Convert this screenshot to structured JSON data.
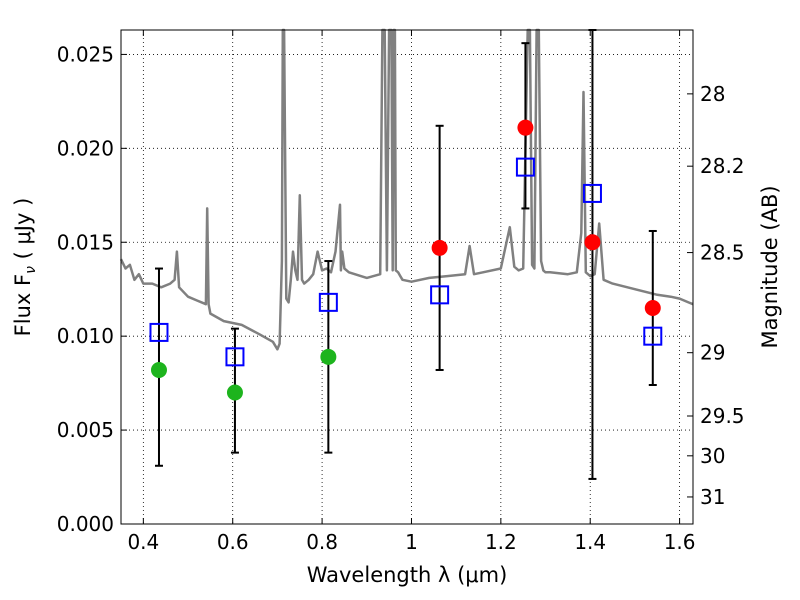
{
  "chart_data": {
    "type": "scatter",
    "xlabel": "Wavelength  λ (μm)",
    "ylabel_text": "Flux  F",
    "ylabel_sub": "ν",
    "ylabel_unit": "  ( μJy )",
    "y2label": "Magnitude (AB)",
    "xlim": [
      0.35,
      1.63
    ],
    "ylim": [
      0.0,
      0.0263
    ],
    "xticks": [
      0.4,
      0.6,
      0.8,
      1.0,
      1.2,
      1.4,
      1.6
    ],
    "xtick_labels": [
      "0.4",
      "0.6",
      "0.8",
      "1",
      "1.2",
      "1.4",
      "1.6"
    ],
    "yticks": [
      0.0,
      0.005,
      0.01,
      0.015,
      0.02,
      0.025
    ],
    "ytick_labels": [
      "0.000",
      "0.005",
      "0.010",
      "0.015",
      "0.020",
      "0.025"
    ],
    "y2ticks": [
      {
        "label": "28",
        "flux": 0.0229
      },
      {
        "label": "28.2",
        "flux": 0.01905
      },
      {
        "label": "28.5",
        "flux": 0.01445
      },
      {
        "label": "29",
        "flux": 0.00912
      },
      {
        "label": "29.5",
        "flux": 0.00575
      },
      {
        "label": "30",
        "flux": 0.00363
      },
      {
        "label": "31",
        "flux": 0.00144
      }
    ],
    "grid": true,
    "colors": {
      "model": "#808080",
      "green": "#1db41d",
      "red": "#ff0000",
      "square": "#0000ff",
      "errorbar": "#000000"
    },
    "series": [
      {
        "marker": "square",
        "x": [
          0.435,
          0.605,
          0.814,
          1.063,
          1.255,
          1.405,
          1.54
        ],
        "y": [
          0.0102,
          0.0089,
          0.0118,
          0.0122,
          0.019,
          0.0176,
          0.01
        ],
        "yerr_low": [
          0.0031,
          0.0038,
          0.0038,
          0.0082,
          0.0168,
          0.0024,
          0.0074
        ],
        "yerr_high": [
          0.0136,
          0.0104,
          0.014,
          0.0212,
          0.0256,
          0.0263,
          0.0156
        ]
      },
      {
        "marker": "circle-green",
        "x": [
          0.435,
          0.605,
          0.814
        ],
        "y": [
          0.0082,
          0.007,
          0.0089
        ]
      },
      {
        "marker": "circle-red",
        "x": [
          1.063,
          1.255,
          1.405,
          1.54
        ],
        "y": [
          0.0147,
          0.0211,
          0.015,
          0.0115
        ]
      }
    ],
    "model_spectrum": {
      "x": [
        0.35,
        0.36,
        0.37,
        0.38,
        0.39,
        0.4,
        0.42,
        0.44,
        0.46,
        0.47,
        0.475,
        0.48,
        0.5,
        0.52,
        0.54,
        0.543,
        0.546,
        0.55,
        0.58,
        0.62,
        0.66,
        0.69,
        0.7,
        0.705,
        0.71,
        0.712,
        0.715,
        0.72,
        0.725,
        0.73,
        0.735,
        0.74,
        0.745,
        0.75,
        0.755,
        0.76,
        0.77,
        0.78,
        0.79,
        0.8,
        0.81,
        0.82,
        0.83,
        0.84,
        0.842,
        0.845,
        0.85,
        0.86,
        0.9,
        0.93,
        0.935,
        0.94,
        0.945,
        0.95,
        0.955,
        0.958,
        0.96,
        0.963,
        0.965,
        0.97,
        0.975,
        0.98,
        1.0,
        1.04,
        1.08,
        1.12,
        1.13,
        1.14,
        1.16,
        1.2,
        1.22,
        1.23,
        1.24,
        1.25,
        1.26,
        1.265,
        1.27,
        1.275,
        1.28,
        1.285,
        1.29,
        1.295,
        1.3,
        1.31,
        1.35,
        1.37,
        1.38,
        1.385,
        1.39,
        1.4,
        1.41,
        1.42,
        1.43,
        1.45,
        1.5,
        1.55,
        1.58,
        1.6,
        1.62,
        1.63
      ],
      "y": [
        0.0141,
        0.0136,
        0.0138,
        0.013,
        0.0133,
        0.0128,
        0.0128,
        0.0126,
        0.0128,
        0.013,
        0.0145,
        0.0126,
        0.0121,
        0.0119,
        0.0117,
        0.0168,
        0.0117,
        0.0112,
        0.0108,
        0.0106,
        0.0101,
        0.0097,
        0.0093,
        0.0096,
        0.014,
        0.0263,
        0.0263,
        0.012,
        0.0118,
        0.013,
        0.0145,
        0.0135,
        0.013,
        0.0175,
        0.013,
        0.0128,
        0.013,
        0.0133,
        0.0145,
        0.0135,
        0.0136,
        0.0134,
        0.0145,
        0.017,
        0.0135,
        0.0145,
        0.0136,
        0.0134,
        0.0131,
        0.0133,
        0.0263,
        0.0263,
        0.0135,
        0.0263,
        0.0263,
        0.0135,
        0.0263,
        0.0263,
        0.0135,
        0.0134,
        0.0132,
        0.013,
        0.0129,
        0.0131,
        0.0132,
        0.0133,
        0.0148,
        0.0133,
        0.0134,
        0.0136,
        0.0158,
        0.0137,
        0.0135,
        0.0136,
        0.0263,
        0.0263,
        0.0138,
        0.0136,
        0.0263,
        0.0263,
        0.014,
        0.0135,
        0.0134,
        0.0134,
        0.0133,
        0.0134,
        0.0155,
        0.023,
        0.0134,
        0.0132,
        0.0133,
        0.016,
        0.013,
        0.0128,
        0.0125,
        0.0122,
        0.0121,
        0.012,
        0.0118,
        0.0117
      ]
    }
  }
}
